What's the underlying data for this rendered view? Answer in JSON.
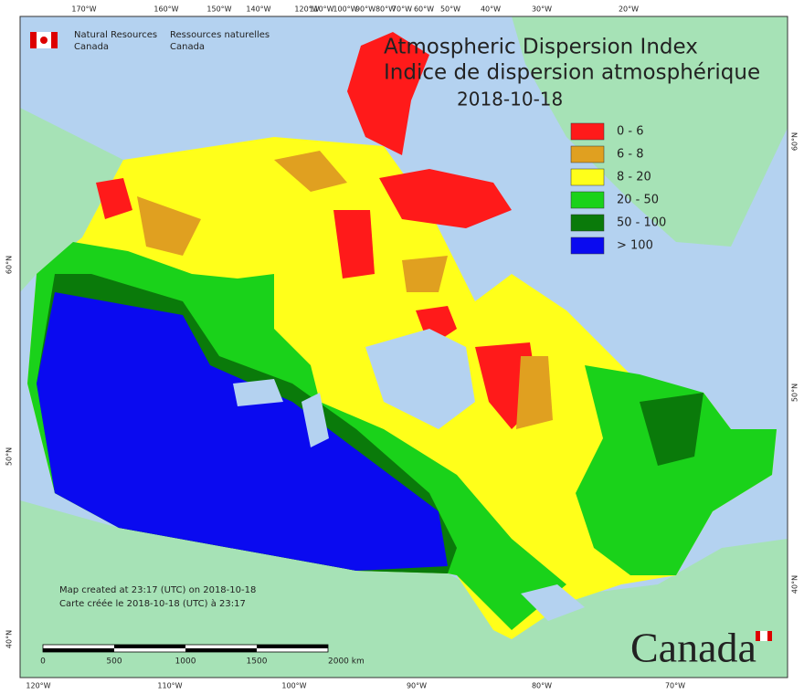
{
  "header": {
    "title": "Atmospheric Dispersion Index",
    "title_fr": "Indice de dispersion atmosphérique",
    "date": "2018-10-18"
  },
  "agency": {
    "en": [
      "Natural Resources",
      "Canada"
    ],
    "fr": [
      "Ressources naturelles",
      "Canada"
    ]
  },
  "legend": [
    {
      "label": "0 - 6",
      "color": "#ff1a1a"
    },
    {
      "label": "6 - 8",
      "color": "#e0a020"
    },
    {
      "label": "8 - 20",
      "color": "#ffff1a"
    },
    {
      "label": "20 - 50",
      "color": "#1ad21a"
    },
    {
      "label": "50 - 100",
      "color": "#0a7a0a"
    },
    {
      "label": "> 100",
      "color": "#0a0af0"
    }
  ],
  "notes": [
    "Map created at 23:17 (UTC) on 2018-10-18",
    "Carte créée le 2018-10-18 (UTC) à 23:17"
  ],
  "scale": {
    "labels": [
      "0",
      "500",
      "1000",
      "1500",
      "2000 km"
    ]
  },
  "graticule": {
    "top": [
      "170°W",
      "160°W",
      "150°W",
      "140°W",
      "120°W",
      "110°W",
      "100°W",
      "90°W",
      "80°W",
      "70°W",
      "60°W",
      "50°W",
      "40°W",
      "30°W",
      "20°W"
    ],
    "bottom": [
      "120°W",
      "110°W",
      "100°W",
      "90°W",
      "80°W",
      "70°W"
    ],
    "left": [
      "60°N",
      "50°N",
      "40°N"
    ],
    "right": [
      "60°N",
      "50°N",
      "40°N"
    ]
  },
  "wordmark": "Canada"
}
